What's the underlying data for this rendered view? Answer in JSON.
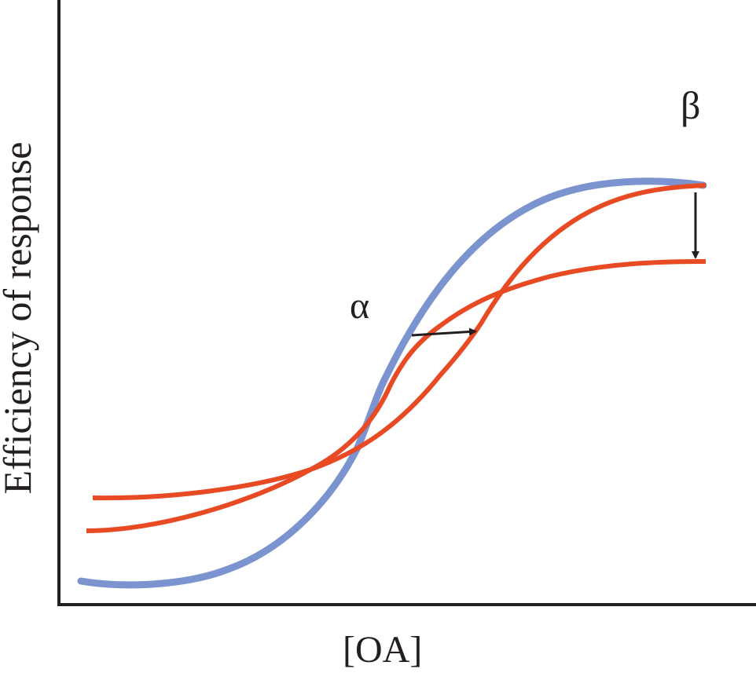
{
  "axes": {
    "y_label": "Efficiency of response",
    "x_label": "[OA]"
  },
  "annotations": {
    "alpha": "α",
    "beta": "β"
  },
  "colors": {
    "reference_curve": "#7b93cf",
    "modified_curves": "#e84a24",
    "axes": "#231f20"
  }
}
